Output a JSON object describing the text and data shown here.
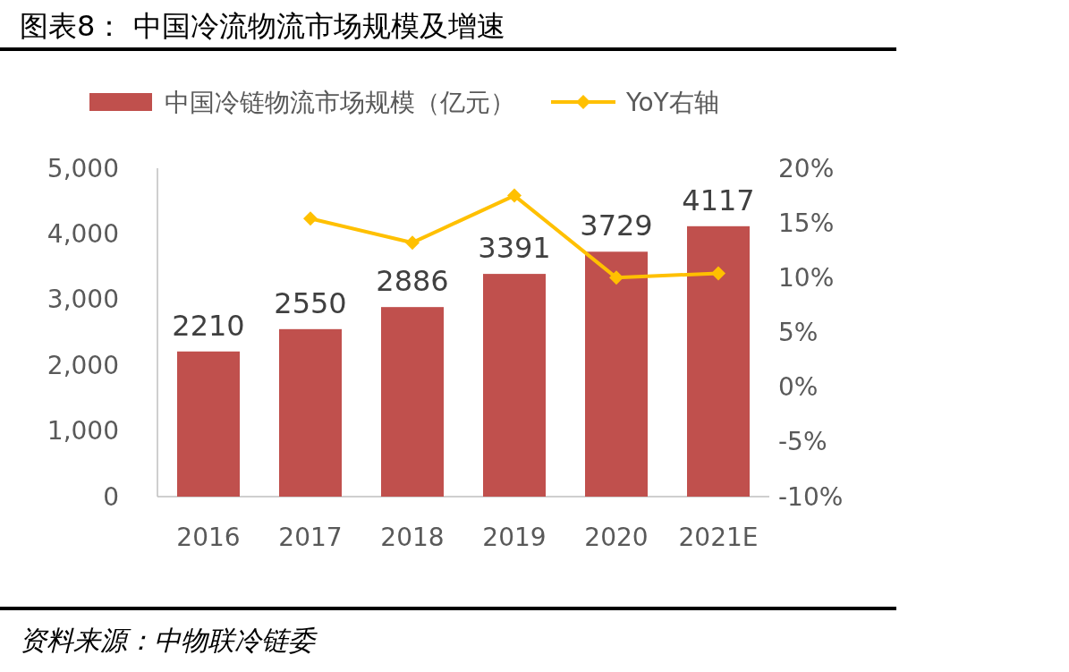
{
  "chart_data": {
    "type": "bar",
    "title": "图表8：  中国冷流物流市场规模及增速",
    "categories": [
      "2016",
      "2017",
      "2018",
      "2019",
      "2020",
      "2021E"
    ],
    "series": [
      {
        "name": "中国冷链物流市场规模（亿元）",
        "color": "#c0504d",
        "values": [
          2210,
          2550,
          2886,
          3391,
          3729,
          4117
        ],
        "value_labels": [
          "2210",
          "2550",
          "2886",
          "3391",
          "3729",
          "4117"
        ]
      },
      {
        "name": "YoY右轴",
        "type": "line",
        "axis": "y2",
        "color": "#ffc000",
        "values": [
          null,
          15.4,
          13.2,
          17.5,
          10.0,
          10.4
        ]
      }
    ],
    "ylim": [
      0,
      5000
    ],
    "yticks": [
      0,
      {
        "value": 1000,
        "label": "1,000"
      },
      {
        "value": 2000,
        "label": "2,000"
      },
      {
        "value": 3000,
        "label": "3,000"
      },
      {
        "value": 4000,
        "label": "4,000"
      },
      {
        "value": 5000,
        "label": "5,000"
      }
    ],
    "y2lim": [
      -10,
      20
    ],
    "y2ticks": [
      {
        "value": -10,
        "label": "-10%"
      },
      {
        "value": -5,
        "label": "-5%"
      },
      {
        "value": 0,
        "label": "0%"
      },
      {
        "value": 5,
        "label": "5%"
      },
      {
        "value": 10,
        "label": "10%"
      },
      {
        "value": 15,
        "label": "15%"
      },
      {
        "value": 20,
        "label": "20%"
      }
    ],
    "marker": "diamond",
    "line_style": "solid",
    "legend": "top",
    "annotations": [
      "资料来源：中物联冷链委"
    ]
  }
}
